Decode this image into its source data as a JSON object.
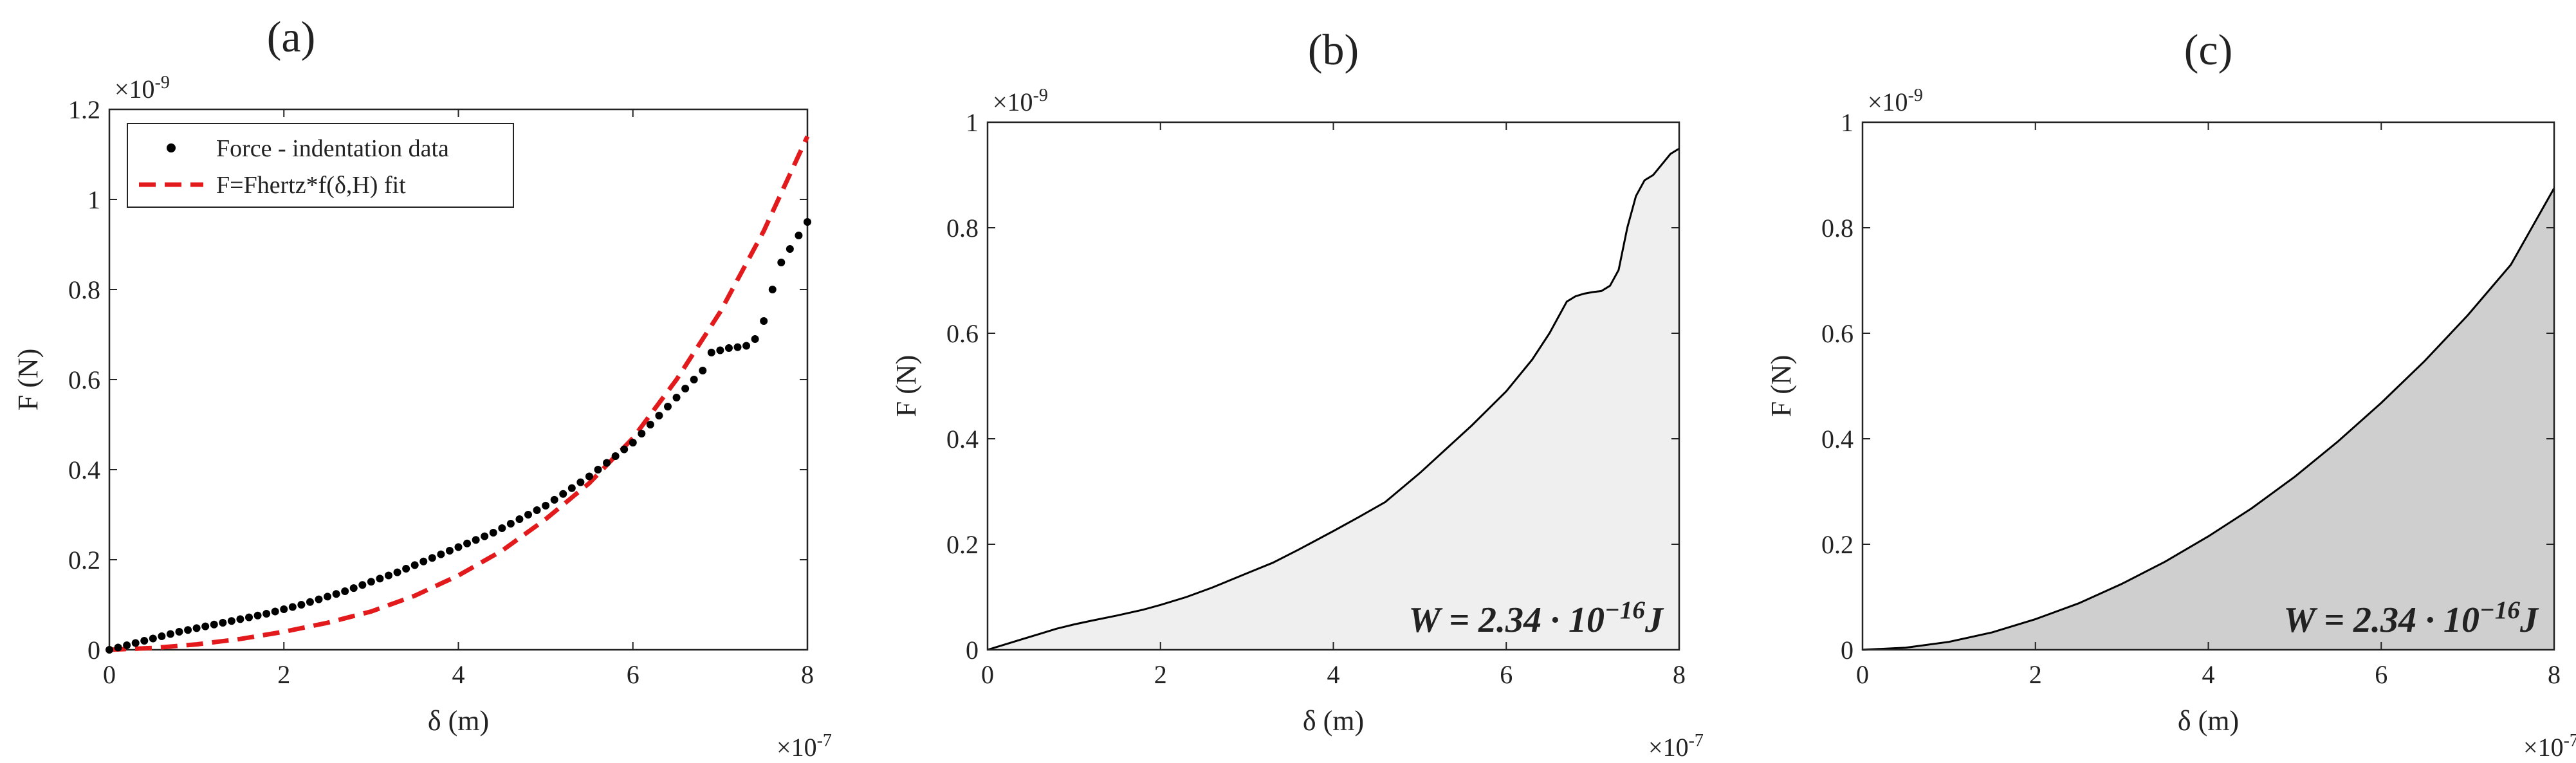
{
  "chart_data": [
    {
      "type": "scatter",
      "panel_label": "(a)",
      "xlabel": "δ (m)",
      "ylabel": "F (N)",
      "x_exponent": "×10",
      "x_exponent_power": "-7",
      "y_exponent": "×10",
      "y_exponent_power": "-9",
      "xlim": [
        0,
        8
      ],
      "ylim": [
        0,
        1.2
      ],
      "xticks": [
        0,
        2,
        4,
        6,
        8
      ],
      "yticks": [
        0,
        0.2,
        0.4,
        0.6,
        0.8,
        1,
        1.2
      ],
      "xtick_labels": [
        "0",
        "2",
        "4",
        "6",
        "8"
      ],
      "ytick_labels": [
        "0",
        "0.2",
        "0.4",
        "0.6",
        "0.8",
        "1",
        "1.2"
      ],
      "legend_position": "top-left",
      "series": [
        {
          "name": "Force - indentation data",
          "kind": "points",
          "color": "#000000",
          "x": [
            0,
            0.1,
            0.2,
            0.3,
            0.4,
            0.5,
            0.6,
            0.7,
            0.8,
            0.9,
            1.0,
            1.1,
            1.2,
            1.3,
            1.4,
            1.5,
            1.6,
            1.7,
            1.8,
            1.9,
            2.0,
            2.1,
            2.2,
            2.3,
            2.4,
            2.5,
            2.6,
            2.7,
            2.8,
            2.9,
            3.0,
            3.1,
            3.2,
            3.3,
            3.4,
            3.5,
            3.6,
            3.7,
            3.8,
            3.9,
            4.0,
            4.1,
            4.2,
            4.3,
            4.4,
            4.5,
            4.6,
            4.7,
            4.8,
            4.9,
            5.0,
            5.1,
            5.2,
            5.3,
            5.4,
            5.5,
            5.6,
            5.7,
            5.8,
            5.9,
            6.0,
            6.1,
            6.2,
            6.3,
            6.4,
            6.5,
            6.6,
            6.7,
            6.8,
            6.9,
            7.0,
            7.1,
            7.2,
            7.3,
            7.4,
            7.5,
            7.6,
            7.7,
            7.8,
            7.9,
            8.0
          ],
          "y": [
            0,
            0.005,
            0.01,
            0.015,
            0.02,
            0.025,
            0.03,
            0.035,
            0.04,
            0.044,
            0.048,
            0.052,
            0.056,
            0.06,
            0.064,
            0.068,
            0.072,
            0.076,
            0.08,
            0.085,
            0.09,
            0.095,
            0.1,
            0.106,
            0.112,
            0.118,
            0.124,
            0.13,
            0.137,
            0.144,
            0.151,
            0.158,
            0.165,
            0.172,
            0.18,
            0.188,
            0.196,
            0.204,
            0.212,
            0.22,
            0.228,
            0.236,
            0.244,
            0.252,
            0.26,
            0.27,
            0.28,
            0.29,
            0.3,
            0.31,
            0.32,
            0.333,
            0.346,
            0.359,
            0.372,
            0.385,
            0.4,
            0.415,
            0.43,
            0.445,
            0.46,
            0.48,
            0.5,
            0.52,
            0.54,
            0.56,
            0.58,
            0.6,
            0.62,
            0.66,
            0.665,
            0.67,
            0.672,
            0.675,
            0.69,
            0.73,
            0.8,
            0.86,
            0.89,
            0.92,
            0.95
          ]
        },
        {
          "name": "F=Fhertz*f(δ,H) fit",
          "kind": "dashed-line",
          "color": "#e31a1c",
          "x": [
            0,
            0.5,
            1,
            1.5,
            2,
            2.5,
            3,
            3.5,
            4,
            4.5,
            5,
            5.5,
            6,
            6.5,
            7,
            7.5,
            8
          ],
          "y": [
            0,
            0.004,
            0.012,
            0.024,
            0.04,
            0.06,
            0.085,
            0.12,
            0.165,
            0.22,
            0.29,
            0.37,
            0.47,
            0.6,
            0.75,
            0.93,
            1.14
          ]
        }
      ]
    },
    {
      "type": "area",
      "panel_label": "(b)",
      "xlabel": "δ (m)",
      "ylabel": "F (N)",
      "x_exponent": "×10",
      "x_exponent_power": "-7",
      "y_exponent": "×10",
      "y_exponent_power": "-9",
      "xlim": [
        0,
        8
      ],
      "ylim": [
        0,
        1
      ],
      "xticks": [
        0,
        2,
        4,
        6,
        8
      ],
      "yticks": [
        0,
        0.2,
        0.4,
        0.6,
        0.8,
        1
      ],
      "xtick_labels": [
        "0",
        "2",
        "4",
        "6",
        "8"
      ],
      "ytick_labels": [
        "0",
        "0.2",
        "0.4",
        "0.6",
        "0.8",
        "1"
      ],
      "fill_color": "#efefef",
      "line_color": "#000000",
      "annotation": "W = 2.34 · 10",
      "annotation_power": "−16",
      "annotation_unit": "J",
      "x": [
        0,
        0.2,
        0.4,
        0.6,
        0.8,
        1.0,
        1.2,
        1.5,
        1.8,
        2.0,
        2.3,
        2.6,
        3.0,
        3.3,
        3.6,
        4.0,
        4.3,
        4.6,
        5.0,
        5.3,
        5.6,
        6.0,
        6.3,
        6.5,
        6.6,
        6.7,
        6.8,
        6.9,
        7.0,
        7.1,
        7.2,
        7.3,
        7.4,
        7.5,
        7.6,
        7.7,
        7.8,
        7.9,
        8.0
      ],
      "y": [
        0,
        0.01,
        0.02,
        0.03,
        0.04,
        0.048,
        0.055,
        0.065,
        0.076,
        0.085,
        0.1,
        0.118,
        0.145,
        0.165,
        0.19,
        0.225,
        0.252,
        0.28,
        0.335,
        0.38,
        0.425,
        0.49,
        0.55,
        0.6,
        0.63,
        0.66,
        0.67,
        0.675,
        0.678,
        0.68,
        0.69,
        0.72,
        0.8,
        0.86,
        0.89,
        0.9,
        0.92,
        0.94,
        0.95
      ]
    },
    {
      "type": "area",
      "panel_label": "(c)",
      "xlabel": "δ (m)",
      "ylabel": "F (N)",
      "x_exponent": "×10",
      "x_exponent_power": "-7",
      "y_exponent": "×10",
      "y_exponent_power": "-9",
      "xlim": [
        0,
        8
      ],
      "ylim": [
        0,
        1
      ],
      "xticks": [
        0,
        2,
        4,
        6,
        8
      ],
      "yticks": [
        0,
        0.2,
        0.4,
        0.6,
        0.8,
        1
      ],
      "xtick_labels": [
        "0",
        "2",
        "4",
        "6",
        "8"
      ],
      "ytick_labels": [
        "0",
        "0.2",
        "0.4",
        "0.6",
        "0.8",
        "1"
      ],
      "fill_color": "#cfcfcf",
      "line_color": "#000000",
      "annotation": "W = 2.34 · 10",
      "annotation_power": "−16",
      "annotation_unit": "J",
      "x": [
        0,
        0.5,
        1,
        1.5,
        2,
        2.5,
        3,
        3.5,
        4,
        4.5,
        5,
        5.5,
        6,
        6.5,
        7,
        7.5,
        8
      ],
      "y": [
        0,
        0.004,
        0.015,
        0.033,
        0.058,
        0.088,
        0.125,
        0.167,
        0.215,
        0.268,
        0.328,
        0.395,
        0.468,
        0.547,
        0.634,
        0.73,
        0.875
      ]
    }
  ]
}
